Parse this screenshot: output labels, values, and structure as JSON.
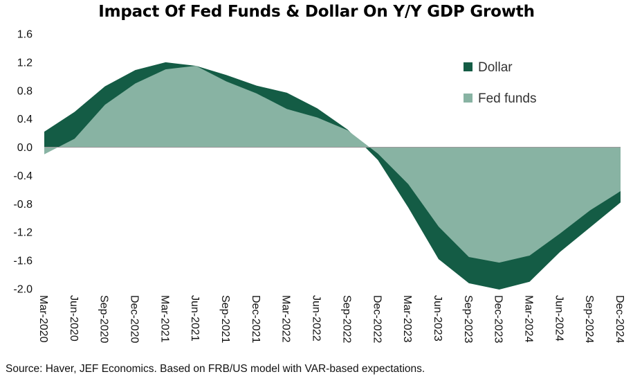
{
  "chart_data": {
    "type": "area",
    "title": "Impact Of Fed Funds & Dollar On Y/Y GDP Growth",
    "xlabel": "",
    "ylabel": "",
    "ylim": [
      -2.0,
      1.6
    ],
    "yticks": [
      "1.6",
      "1.2",
      "0.8",
      "0.4",
      "0.0",
      "-0.4",
      "-0.8",
      "-1.2",
      "-1.6",
      "-2.0"
    ],
    "yticks_values": [
      1.6,
      1.2,
      0.8,
      0.4,
      0.0,
      -0.4,
      -0.8,
      -1.2,
      -1.6,
      -2.0
    ],
    "categories": [
      "Mar-2020",
      "Jun-2020",
      "Sep-2020",
      "Dec-2020",
      "Mar-2021",
      "Jun-2021",
      "Sep-2021",
      "Dec-2021",
      "Mar-2022",
      "Jun-2022",
      "Sep-2022",
      "Dec-2022",
      "Mar-2023",
      "Jun-2023",
      "Sep-2023",
      "Dec-2023",
      "Mar-2024",
      "Jun-2024",
      "Sep-2024",
      "Dec-2024"
    ],
    "legend_position": "top-right",
    "grid": false,
    "series": [
      {
        "name": "Dollar",
        "color": "#145c45",
        "values": [
          0.22,
          0.5,
          0.86,
          1.09,
          1.2,
          1.15,
          1.02,
          0.87,
          0.77,
          0.55,
          0.25,
          -0.18,
          -0.85,
          -1.58,
          -1.92,
          -2.01,
          -1.9,
          -1.48,
          -1.13,
          -0.78
        ]
      },
      {
        "name": "Fed funds",
        "color": "#88b3a3",
        "values": [
          -0.1,
          0.12,
          0.6,
          0.9,
          1.1,
          1.15,
          0.93,
          0.76,
          0.54,
          0.42,
          0.24,
          -0.09,
          -0.52,
          -1.12,
          -1.55,
          -1.63,
          -1.53,
          -1.22,
          -0.89,
          -0.62
        ]
      }
    ]
  },
  "source": "Source: Haver, JEF Economics. Based on FRB/US model with VAR-based expectations."
}
